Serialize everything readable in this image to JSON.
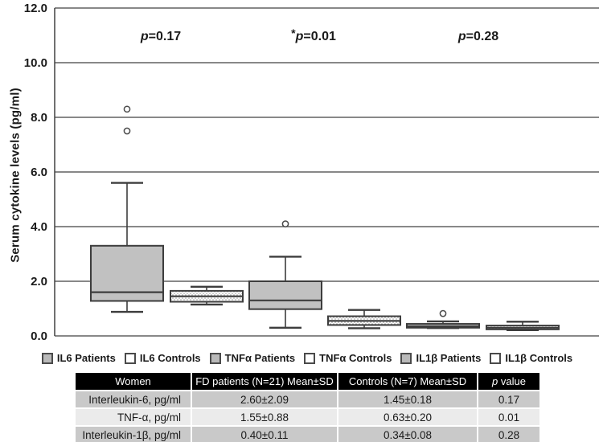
{
  "colors": {
    "box_gray": "#c1c1c1",
    "stipple_dot": "#9a9a9a",
    "box_border": "#3d3d3d",
    "grid_line": "#404040",
    "outlier_stroke": "#4a4a4a",
    "table_header_bg": "#000000",
    "table_row_dark": "#c9c9c9",
    "table_row_light": "#ebebeb"
  },
  "chart_data": {
    "type": "boxplot",
    "title": "",
    "xlabel": "",
    "ylabel": "Serum cytokine levels (pg/ml)",
    "ylim": [
      0,
      12
    ],
    "grid": true,
    "yticks": [
      {
        "value": 0,
        "label": "0.0"
      },
      {
        "value": 2,
        "label": "2.0"
      },
      {
        "value": 4,
        "label": "4.0"
      },
      {
        "value": 6,
        "label": "6.0"
      },
      {
        "value": 8,
        "label": "8.0"
      },
      {
        "value": 10,
        "label": "10.0"
      },
      {
        "value": 12,
        "label": "12.0"
      }
    ],
    "annotations": [
      {
        "text": "p=0.17"
      },
      {
        "text": "*p=0.01"
      },
      {
        "text": "p=0.28"
      }
    ],
    "series": [
      {
        "name": "IL6 Patients",
        "style": "gray",
        "whisker_low": 0.88,
        "q1": 1.28,
        "median": 1.6,
        "q3": 3.3,
        "whisker_high": 5.6,
        "outliers": [
          7.5,
          8.3
        ]
      },
      {
        "name": "IL6 Controls",
        "style": "stipple",
        "whisker_low": 1.15,
        "q1": 1.25,
        "median": 1.45,
        "q3": 1.65,
        "whisker_high": 1.8,
        "outliers": []
      },
      {
        "name": "TNFα Patients",
        "style": "gray",
        "whisker_low": 0.3,
        "q1": 0.98,
        "median": 1.3,
        "q3": 2.0,
        "whisker_high": 2.9,
        "outliers": [
          4.1
        ]
      },
      {
        "name": "TNFα Controls",
        "style": "stipple",
        "whisker_low": 0.28,
        "q1": 0.4,
        "median": 0.55,
        "q3": 0.72,
        "whisker_high": 0.95,
        "outliers": []
      },
      {
        "name": "IL1β Patients",
        "style": "gray",
        "whisker_low": 0.29,
        "q1": 0.3,
        "median": 0.35,
        "q3": 0.44,
        "whisker_high": 0.53,
        "outliers": [
          0.82
        ]
      },
      {
        "name": "IL1β Controls",
        "style": "stipple",
        "whisker_low": 0.21,
        "q1": 0.24,
        "median": 0.3,
        "q3": 0.38,
        "whisker_high": 0.52,
        "outliers": []
      }
    ],
    "legend_position": "bottom"
  },
  "legend": {
    "items": [
      {
        "label": "IL6 Patients",
        "swatch": "gray"
      },
      {
        "label": "IL6 Controls",
        "swatch": "white"
      },
      {
        "label": "TNFα Patients",
        "swatch": "gray"
      },
      {
        "label": "TNFα Controls",
        "swatch": "white"
      },
      {
        "label": "IL1β Patients",
        "swatch": "gray"
      },
      {
        "label": "IL1β Controls",
        "swatch": "white"
      }
    ]
  },
  "table": {
    "headers": [
      "Women",
      "FD patients (N=21) Mean±SD",
      "Controls (N=7) Mean±SD",
      "p value"
    ],
    "rows": [
      [
        "Interleukin-6, pg/ml",
        "2.60±2.09",
        "1.45±0.18",
        "0.17"
      ],
      [
        "TNF-α, pg/ml",
        "1.55±0.88",
        "0.63±0.20",
        "0.01"
      ],
      [
        "Interleukin-1β, pg/ml",
        "0.40±0.11",
        "0.34±0.08",
        "0.28"
      ]
    ]
  }
}
